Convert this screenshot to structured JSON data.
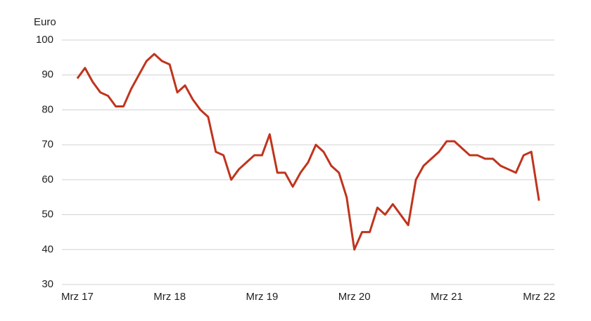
{
  "chart_data": {
    "type": "line",
    "y_label": "Euro",
    "x": [
      "2017-03",
      "2017-04",
      "2017-05",
      "2017-06",
      "2017-07",
      "2017-08",
      "2017-09",
      "2017-10",
      "2017-11",
      "2017-12",
      "2018-01",
      "2018-02",
      "2018-03",
      "2018-04",
      "2018-05",
      "2018-06",
      "2018-07",
      "2018-08",
      "2018-09",
      "2018-10",
      "2018-11",
      "2018-12",
      "2019-01",
      "2019-02",
      "2019-03",
      "2019-04",
      "2019-05",
      "2019-06",
      "2019-07",
      "2019-08",
      "2019-09",
      "2019-10",
      "2019-11",
      "2019-12",
      "2020-01",
      "2020-02",
      "2020-03",
      "2020-04",
      "2020-05",
      "2020-06",
      "2020-07",
      "2020-08",
      "2020-09",
      "2020-10",
      "2020-11",
      "2020-12",
      "2021-01",
      "2021-02",
      "2021-03",
      "2021-04",
      "2021-05",
      "2021-06",
      "2021-07",
      "2021-08",
      "2021-09",
      "2021-10",
      "2021-11",
      "2021-12",
      "2022-01",
      "2022-02",
      "2022-03"
    ],
    "series": [
      {
        "color": "#c0341d",
        "values": [
          89,
          92,
          88,
          85,
          84,
          81,
          81,
          86,
          90,
          94,
          96,
          94,
          93,
          85,
          87,
          83,
          80,
          78,
          68,
          67,
          60,
          63,
          65,
          67,
          67,
          73,
          62,
          62,
          58,
          62,
          65,
          70,
          68,
          64,
          62,
          55,
          40,
          45,
          45,
          52,
          50,
          53,
          50,
          47,
          60,
          64,
          66,
          68,
          71,
          71,
          69,
          67,
          67,
          66,
          66,
          64,
          63,
          62,
          67,
          68,
          54
        ]
      }
    ],
    "xlim": [
      "2017-01",
      "2022-05"
    ],
    "xticks": [
      {
        "value": "2017-03",
        "label": "Mrz 17"
      },
      {
        "value": "2018-03",
        "label": "Mrz 18"
      },
      {
        "value": "2019-03",
        "label": "Mrz 19"
      },
      {
        "value": "2020-03",
        "label": "Mrz 20"
      },
      {
        "value": "2021-03",
        "label": "Mrz 21"
      },
      {
        "value": "2022-03",
        "label": "Mrz 22"
      }
    ],
    "ylim": [
      30,
      100
    ],
    "yticks": [
      30,
      40,
      50,
      60,
      70,
      80,
      90,
      100
    ],
    "grid": true
  }
}
